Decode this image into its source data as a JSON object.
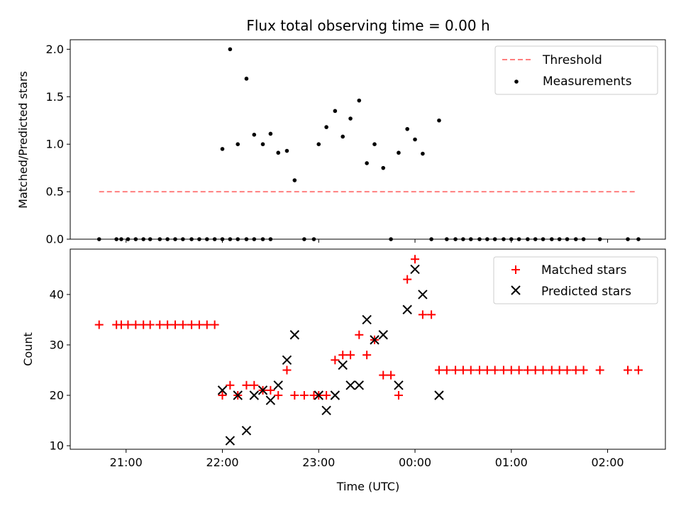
{
  "chart_data": [
    {
      "type": "scatter",
      "title": "Flux total observing time = 0.00 h",
      "xlabel": "",
      "ylabel": "Matched/Predicted stars",
      "xlim": [
        20.42,
        26.6
      ],
      "ylim": [
        0.0,
        2.1
      ],
      "yticks": [
        0.0,
        0.5,
        1.0,
        1.5,
        2.0
      ],
      "ytick_labels": [
        "0.0",
        "0.5",
        "1.0",
        "1.5",
        "2.0"
      ],
      "legend_position": "top-right",
      "threshold": {
        "name": "Threshold",
        "value": 0.5,
        "x_range": [
          20.72,
          26.3
        ],
        "color": "#ff7f7f"
      },
      "series": [
        {
          "name": "Measurements",
          "color": "#000000",
          "points": [
            [
              20.72,
              0
            ],
            [
              20.9,
              0
            ],
            [
              20.95,
              0
            ],
            [
              21.02,
              0
            ],
            [
              21.1,
              0
            ],
            [
              21.18,
              0
            ],
            [
              21.25,
              0
            ],
            [
              21.35,
              0
            ],
            [
              21.43,
              0
            ],
            [
              21.51,
              0
            ],
            [
              21.59,
              0
            ],
            [
              21.68,
              0
            ],
            [
              21.76,
              0
            ],
            [
              21.84,
              0
            ],
            [
              21.92,
              0
            ],
            [
              22.0,
              0
            ],
            [
              22.08,
              0
            ],
            [
              22.16,
              0
            ],
            [
              22.25,
              0
            ],
            [
              22.33,
              0
            ],
            [
              22.42,
              0
            ],
            [
              22.5,
              0
            ],
            [
              22.0,
              0.95
            ],
            [
              22.08,
              2.0
            ],
            [
              22.16,
              1.0
            ],
            [
              22.25,
              1.69
            ],
            [
              22.33,
              1.1
            ],
            [
              22.42,
              1.0
            ],
            [
              22.5,
              1.11
            ],
            [
              22.58,
              0.91
            ],
            [
              22.67,
              0.93
            ],
            [
              22.75,
              0.62
            ],
            [
              22.85,
              0
            ],
            [
              22.95,
              0
            ],
            [
              23.0,
              1.0
            ],
            [
              23.08,
              1.18
            ],
            [
              23.17,
              1.35
            ],
            [
              23.25,
              1.08
            ],
            [
              23.33,
              1.27
            ],
            [
              23.42,
              1.46
            ],
            [
              23.5,
              0.8
            ],
            [
              23.58,
              1.0
            ],
            [
              23.67,
              0.75
            ],
            [
              23.75,
              0
            ],
            [
              23.83,
              0.91
            ],
            [
              23.92,
              1.16
            ],
            [
              24.0,
              1.05
            ],
            [
              24.08,
              0.9
            ],
            [
              24.17,
              0
            ],
            [
              24.25,
              1.25
            ],
            [
              24.33,
              0
            ],
            [
              24.42,
              0
            ],
            [
              24.5,
              0
            ],
            [
              24.58,
              0
            ],
            [
              24.67,
              0
            ],
            [
              24.75,
              0
            ],
            [
              24.83,
              0
            ],
            [
              24.92,
              0
            ],
            [
              25.0,
              0
            ],
            [
              25.08,
              0
            ],
            [
              25.17,
              0
            ],
            [
              25.25,
              0
            ],
            [
              25.33,
              0
            ],
            [
              25.42,
              0
            ],
            [
              25.5,
              0
            ],
            [
              25.58,
              0
            ],
            [
              25.67,
              0
            ],
            [
              25.75,
              0
            ],
            [
              25.92,
              0
            ],
            [
              26.21,
              0
            ],
            [
              26.32,
              0
            ]
          ]
        }
      ]
    },
    {
      "type": "scatter",
      "title": "",
      "xlabel": "Time (UTC)",
      "ylabel": "Count",
      "xlim": [
        20.42,
        26.6
      ],
      "ylim": [
        9.3,
        49.0
      ],
      "yticks": [
        10,
        20,
        30,
        40
      ],
      "ytick_labels": [
        "10",
        "20",
        "30",
        "40"
      ],
      "xticks": [
        21,
        22,
        23,
        24,
        25,
        26
      ],
      "xtick_labels": [
        "21:00",
        "22:00",
        "23:00",
        "00:00",
        "01:00",
        "02:00"
      ],
      "legend_position": "top-right",
      "series": [
        {
          "name": "Matched stars",
          "marker": "+",
          "color": "#ff0000",
          "points": [
            [
              20.72,
              34
            ],
            [
              20.9,
              34
            ],
            [
              20.95,
              34
            ],
            [
              21.02,
              34
            ],
            [
              21.1,
              34
            ],
            [
              21.18,
              34
            ],
            [
              21.25,
              34
            ],
            [
              21.35,
              34
            ],
            [
              21.43,
              34
            ],
            [
              21.51,
              34
            ],
            [
              21.59,
              34
            ],
            [
              21.68,
              34
            ],
            [
              21.68,
              34
            ],
            [
              21.76,
              34
            ],
            [
              21.84,
              34
            ],
            [
              21.92,
              34
            ],
            [
              22.0,
              20
            ],
            [
              22.08,
              22
            ],
            [
              22.16,
              20
            ],
            [
              22.25,
              22
            ],
            [
              22.33,
              22
            ],
            [
              22.42,
              21
            ],
            [
              22.5,
              21
            ],
            [
              22.58,
              20
            ],
            [
              22.67,
              25
            ],
            [
              22.75,
              20
            ],
            [
              22.85,
              20
            ],
            [
              22.95,
              20
            ],
            [
              23.0,
              20
            ],
            [
              23.08,
              20
            ],
            [
              23.17,
              27
            ],
            [
              23.25,
              28
            ],
            [
              23.33,
              28
            ],
            [
              23.42,
              32
            ],
            [
              23.5,
              28
            ],
            [
              23.58,
              31
            ],
            [
              23.67,
              24
            ],
            [
              23.75,
              24
            ],
            [
              23.83,
              20
            ],
            [
              23.92,
              43
            ],
            [
              24.0,
              47
            ],
            [
              24.08,
              36
            ],
            [
              24.17,
              36
            ],
            [
              24.25,
              25
            ],
            [
              24.33,
              25
            ],
            [
              24.42,
              25
            ],
            [
              24.5,
              25
            ],
            [
              24.58,
              25
            ],
            [
              24.67,
              25
            ],
            [
              24.75,
              25
            ],
            [
              24.83,
              25
            ],
            [
              24.92,
              25
            ],
            [
              25.0,
              25
            ],
            [
              25.08,
              25
            ],
            [
              25.17,
              25
            ],
            [
              25.25,
              25
            ],
            [
              25.33,
              25
            ],
            [
              25.42,
              25
            ],
            [
              25.5,
              25
            ],
            [
              25.58,
              25
            ],
            [
              25.67,
              25
            ],
            [
              25.75,
              25
            ],
            [
              25.92,
              25
            ],
            [
              26.21,
              25
            ],
            [
              26.32,
              25
            ]
          ]
        },
        {
          "name": "Predicted stars",
          "marker": "x",
          "color": "#000000",
          "points": [
            [
              22.0,
              21
            ],
            [
              22.08,
              11
            ],
            [
              22.16,
              20
            ],
            [
              22.25,
              13
            ],
            [
              22.33,
              20
            ],
            [
              22.42,
              21
            ],
            [
              22.5,
              19
            ],
            [
              22.58,
              22
            ],
            [
              22.67,
              27
            ],
            [
              22.75,
              32
            ],
            [
              23.0,
              20
            ],
            [
              23.08,
              17
            ],
            [
              23.17,
              20
            ],
            [
              23.25,
              26
            ],
            [
              23.33,
              22
            ],
            [
              23.42,
              22
            ],
            [
              23.5,
              35
            ],
            [
              23.58,
              31
            ],
            [
              23.67,
              32
            ],
            [
              23.83,
              22
            ],
            [
              23.92,
              37
            ],
            [
              24.0,
              45
            ],
            [
              24.08,
              40
            ],
            [
              24.25,
              20
            ]
          ]
        }
      ]
    }
  ]
}
